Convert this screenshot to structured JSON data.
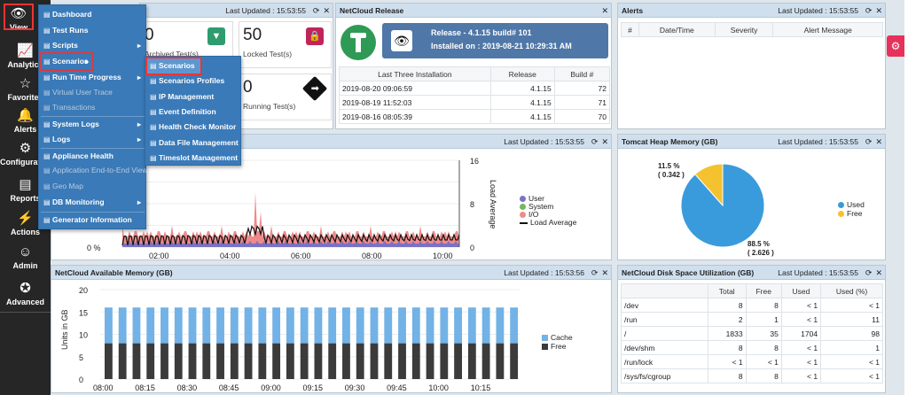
{
  "rail": [
    {
      "label": "View",
      "icon": "eye-icon",
      "glyph": "👁"
    },
    {
      "label": "Analytics",
      "icon": "chart-line-icon",
      "glyph": "📈"
    },
    {
      "label": "Favorites",
      "icon": "star-icon",
      "glyph": "☆"
    },
    {
      "label": "Alerts",
      "icon": "bell-icon",
      "glyph": "🔔"
    },
    {
      "label": "Configuration",
      "icon": "gears-icon",
      "glyph": "⚙"
    },
    {
      "label": "Reports",
      "icon": "report-icon",
      "glyph": "▤"
    },
    {
      "label": "Actions",
      "icon": "actions-icon",
      "glyph": "⚡"
    },
    {
      "label": "Admin",
      "icon": "user-icon",
      "glyph": "☺"
    },
    {
      "label": "Advanced",
      "icon": "advanced-icon",
      "glyph": "✪"
    }
  ],
  "menu": [
    {
      "label": "Dashboard",
      "dis": false,
      "sub": false
    },
    {
      "label": "Test Runs",
      "dis": false,
      "sub": false
    },
    {
      "label": "Scripts",
      "dis": false,
      "sub": true
    },
    {
      "label": "Scenarios",
      "dis": false,
      "sub": true
    },
    {
      "label": "Run Time Progress",
      "dis": false,
      "sub": true
    },
    {
      "label": "Virtual User Trace",
      "dis": true,
      "sub": false
    },
    {
      "label": "Transactions",
      "dis": true,
      "sub": false
    },
    {
      "label": "System Logs",
      "dis": false,
      "sub": true
    },
    {
      "label": "Logs",
      "dis": false,
      "sub": true
    },
    {
      "label": "Appliance Health",
      "dis": false,
      "sub": false
    },
    {
      "label": "Application End-to-End View",
      "dis": true,
      "sub": false
    },
    {
      "label": "Geo Map",
      "dis": true,
      "sub": false
    },
    {
      "label": "DB Monitoring",
      "dis": false,
      "sub": true
    },
    {
      "label": "Generator Information",
      "dis": false,
      "sub": false
    }
  ],
  "submenu": [
    "Scenarios",
    "Scenarios Profiles",
    "IP Management",
    "Event Definition",
    "Health Check Monitor",
    "Data File Management",
    "Timeslot Management"
  ],
  "summary": {
    "updated": "Last Updated : 15:53:55",
    "tiles": [
      {
        "value": "0",
        "label": "Archived Test(s)",
        "icon": "archive-icon",
        "color": "#2e9c6e"
      },
      {
        "value": "50",
        "label": "Locked Test(s)",
        "icon": "lock-icon",
        "color": "#c0245a"
      },
      {
        "value": "0",
        "label": "Running Test(s)",
        "icon": "direction-sign-icon",
        "color": "#111111"
      }
    ]
  },
  "release": {
    "title": "NetCloud Release",
    "version": "Release - 4.1.15 build# 101",
    "installed": "Installed on : 2019-08-21 10:29:31 AM",
    "columns": [
      "Last Three Installation",
      "Release",
      "Build #"
    ],
    "rows": [
      [
        "2019-08-20 09:06:59",
        "4.1.15",
        "72"
      ],
      [
        "2019-08-19 11:52:03",
        "4.1.15",
        "71"
      ],
      [
        "2019-08-16 08:05:39",
        "4.1.15",
        "70"
      ]
    ]
  },
  "alerts": {
    "title": "Alerts",
    "updated": "Last Updated : 15:53:55",
    "columns": [
      "#",
      "Date/Time",
      "Severity",
      "Alert Message"
    ]
  },
  "cpu": {
    "updated": "Last Updated : 15:53:55",
    "yleft_tick": "0 %",
    "yright_label": "Load Average",
    "legend": [
      "User",
      "System",
      "I/O",
      "Load Average"
    ]
  },
  "heap": {
    "title": "Tomcat Heap Memory (GB)",
    "updated": "Last Updated : 15:53:55",
    "legend": [
      "Used",
      "Free"
    ],
    "used_label": "88.5 %",
    "used_value": "( 2.626 )",
    "free_label": "11.5 %",
    "free_value": "( 0.342 )"
  },
  "memory": {
    "title": "NetCloud Available Memory (GB)",
    "updated": "Last Updated : 15:53:56",
    "ylabel": "Units in GB",
    "legend": [
      "Cache",
      "Free"
    ]
  },
  "disk": {
    "title": "NetCloud Disk Space Utilization (GB)",
    "updated": "Last Updated : 15:53:55",
    "columns": [
      "",
      "Total",
      "Free",
      "Used",
      "Used (%)"
    ],
    "rows": [
      [
        "/dev",
        "8",
        "8",
        "< 1",
        "< 1"
      ],
      [
        "/run",
        "2",
        "1",
        "< 1",
        "11"
      ],
      [
        "/",
        "1833",
        "35",
        "1704",
        "98"
      ],
      [
        "/dev/shm",
        "8",
        "8",
        "< 1",
        "1"
      ],
      [
        "/run/lock",
        "< 1",
        "< 1",
        "< 1",
        "< 1"
      ],
      [
        "/sys/fs/cgroup",
        "8",
        "8",
        "< 1",
        "< 1"
      ]
    ]
  },
  "chart_data": [
    {
      "type": "area",
      "title": "",
      "xlabel": "",
      "ylabel": "",
      "y2label": "Load Average",
      "x": [
        "02:00",
        "04:00",
        "06:00",
        "08:00",
        "10:00"
      ],
      "y2lim": [
        0,
        16
      ],
      "y2ticks": [
        "16",
        "8",
        "0"
      ],
      "series": [
        {
          "name": "User"
        },
        {
          "name": "System"
        },
        {
          "name": "I/O"
        },
        {
          "name": "Load Average"
        }
      ],
      "colors": {
        "User": "#7b72c4",
        "System": "#6fbb5a",
        "I/O": "#f08a8a",
        "Load Average": "#111111"
      },
      "legend": "right"
    },
    {
      "type": "pie",
      "title": "Tomcat Heap Memory (GB)",
      "slices": [
        {
          "name": "Used",
          "value": 2.626,
          "percent": 88.5,
          "color": "#3a9bdc"
        },
        {
          "name": "Free",
          "value": 0.342,
          "percent": 11.5,
          "color": "#f3c22e"
        }
      ],
      "legend": "right"
    },
    {
      "type": "bar",
      "title": "NetCloud Available Memory (GB)",
      "ylabel": "Units in GB",
      "ylim": [
        0,
        20
      ],
      "yticks": [
        "20",
        "15",
        "10",
        "5",
        "0"
      ],
      "categories": [
        "08:00",
        "08:15",
        "08:30",
        "08:45",
        "09:00",
        "09:15",
        "09:30",
        "09:45",
        "10:00",
        "10:15"
      ],
      "stacked": true,
      "bars_per_category": 3,
      "series": [
        {
          "name": "Free",
          "value": 8,
          "color": "#3b3b3b"
        },
        {
          "name": "Cache",
          "value": 8,
          "color": "#72b2e6"
        }
      ],
      "legend": "right"
    }
  ]
}
